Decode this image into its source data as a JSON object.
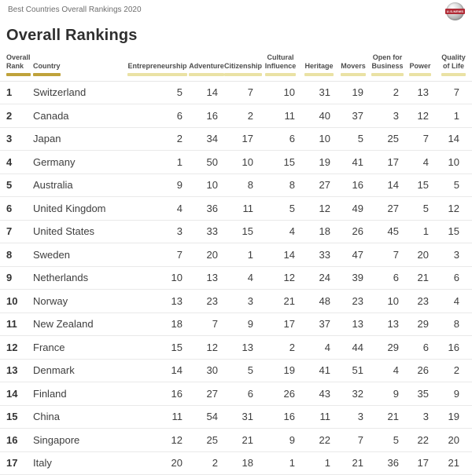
{
  "topbar": {
    "breadcrumb": "Best Countries Overall Rankings 2020",
    "logo_text": "U.S.NEWS"
  },
  "page": {
    "title": "Overall Rankings"
  },
  "colors": {
    "accent_active": "#bfa23b",
    "accent_inactive": "#eae2a4",
    "logo_red": "#b02a35"
  },
  "table": {
    "columns": [
      {
        "id": "overall-rank",
        "lines": [
          "Overall",
          "Rank"
        ],
        "align": "left",
        "active": true
      },
      {
        "id": "country",
        "lines": [
          "Country"
        ],
        "align": "left",
        "active": true
      },
      {
        "id": "entrepreneurship",
        "lines": [
          "Entrepreneurship"
        ],
        "align": "right",
        "active": false
      },
      {
        "id": "adventure",
        "lines": [
          "Adventure"
        ],
        "align": "right",
        "active": false
      },
      {
        "id": "citizenship",
        "lines": [
          "Citizenship"
        ],
        "align": "right",
        "active": false
      },
      {
        "id": "cultural-influence",
        "lines": [
          "Cultural",
          "Influence"
        ],
        "align": "right",
        "active": false
      },
      {
        "id": "heritage",
        "lines": [
          "Heritage"
        ],
        "align": "right",
        "active": false
      },
      {
        "id": "movers",
        "lines": [
          "Movers"
        ],
        "align": "right",
        "active": false
      },
      {
        "id": "open-for-business",
        "lines": [
          "Open for",
          "Business"
        ],
        "align": "right",
        "active": false
      },
      {
        "id": "power",
        "lines": [
          "Power"
        ],
        "align": "right",
        "active": false
      },
      {
        "id": "quality-of-life",
        "lines": [
          "Quality",
          "of Life"
        ],
        "align": "right",
        "active": false
      }
    ],
    "rows": [
      {
        "rank": "1",
        "country": "Switzerland",
        "scores": [
          5,
          14,
          7,
          10,
          31,
          19,
          2,
          13,
          7
        ]
      },
      {
        "rank": "2",
        "country": "Canada",
        "scores": [
          6,
          16,
          2,
          11,
          40,
          37,
          3,
          12,
          1
        ]
      },
      {
        "rank": "3",
        "country": "Japan",
        "scores": [
          2,
          34,
          17,
          6,
          10,
          5,
          25,
          7,
          14
        ]
      },
      {
        "rank": "4",
        "country": "Germany",
        "scores": [
          1,
          50,
          10,
          15,
          19,
          41,
          17,
          4,
          10
        ]
      },
      {
        "rank": "5",
        "country": "Australia",
        "scores": [
          9,
          10,
          8,
          8,
          27,
          16,
          14,
          15,
          5
        ]
      },
      {
        "rank": "6",
        "country": "United Kingdom",
        "scores": [
          4,
          36,
          11,
          5,
          12,
          49,
          27,
          5,
          12
        ]
      },
      {
        "rank": "7",
        "country": "United States",
        "scores": [
          3,
          33,
          15,
          4,
          18,
          26,
          45,
          1,
          15
        ]
      },
      {
        "rank": "8",
        "country": "Sweden",
        "scores": [
          7,
          20,
          1,
          14,
          33,
          47,
          7,
          20,
          3
        ]
      },
      {
        "rank": "9",
        "country": "Netherlands",
        "scores": [
          10,
          13,
          4,
          12,
          24,
          39,
          6,
          21,
          6
        ]
      },
      {
        "rank": "10",
        "country": "Norway",
        "scores": [
          13,
          23,
          3,
          21,
          48,
          23,
          10,
          23,
          4
        ]
      },
      {
        "rank": "11",
        "country": "New Zealand",
        "scores": [
          18,
          7,
          9,
          17,
          37,
          13,
          13,
          29,
          8
        ]
      },
      {
        "rank": "12",
        "country": "France",
        "scores": [
          15,
          12,
          13,
          2,
          4,
          44,
          29,
          6,
          16
        ]
      },
      {
        "rank": "13",
        "country": "Denmark",
        "scores": [
          14,
          30,
          5,
          19,
          41,
          51,
          4,
          26,
          2
        ]
      },
      {
        "rank": "14",
        "country": "Finland",
        "scores": [
          16,
          27,
          6,
          26,
          43,
          32,
          9,
          35,
          9
        ]
      },
      {
        "rank": "15",
        "country": "China",
        "scores": [
          11,
          54,
          31,
          16,
          11,
          3,
          21,
          3,
          19
        ]
      },
      {
        "rank": "16",
        "country": "Singapore",
        "scores": [
          12,
          25,
          21,
          9,
          22,
          7,
          5,
          22,
          20
        ]
      },
      {
        "rank": "17",
        "country": "Italy",
        "scores": [
          20,
          2,
          18,
          1,
          1,
          21,
          36,
          17,
          21
        ]
      }
    ]
  }
}
